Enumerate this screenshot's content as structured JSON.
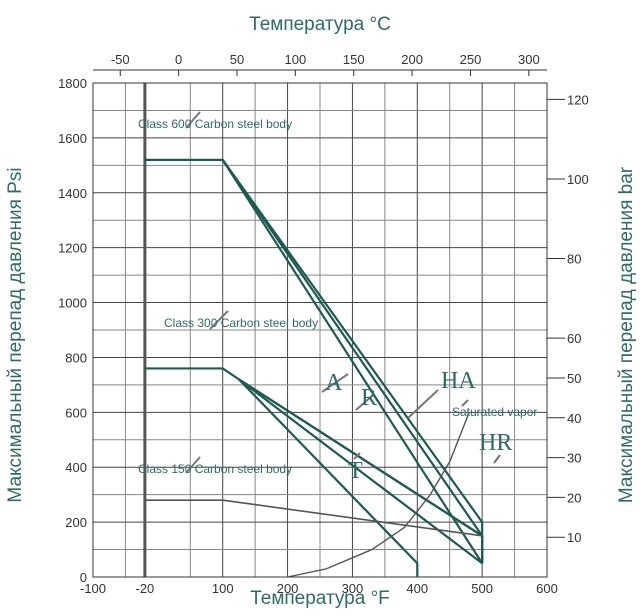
{
  "chart_data": {
    "type": "line",
    "title": "",
    "xlabel_bottom": "Температура °F",
    "xlabel_top": "Температура °C",
    "ylabel_left": "Максимальный перепад давления Psi",
    "ylabel_right": "Максимальный перепад давления bar",
    "xlim": [
      -100,
      600
    ],
    "ylim": [
      0,
      1800
    ],
    "x_ticks_bottom": [
      "-100",
      "-20",
      "100",
      "200",
      "300",
      "400",
      "500",
      "600"
    ],
    "x_ticks_top": [
      "-50",
      "0",
      "50",
      "100",
      "150",
      "200",
      "250",
      "300"
    ],
    "y_ticks_left": [
      "0",
      "200",
      "400",
      "600",
      "800",
      "1000",
      "1200",
      "1400",
      "1600",
      "1800"
    ],
    "y_ticks_right": [
      "10",
      "20",
      "30",
      "40",
      "50",
      "60",
      "80",
      "100",
      "120"
    ],
    "grid": true,
    "annotations": {
      "class600": "Class 600 Carbon steel body",
      "class300": "Class 300 Carbon steel body",
      "class150": "Class 150 Carbon steel body",
      "saturated": "Saturated vapor",
      "HA": "HA",
      "A": "A",
      "R": "R",
      "T": "T",
      "HR": "HR"
    },
    "series": [
      {
        "x": [
          -20,
          100,
          500,
          500
        ],
        "y": [
          1520,
          1520,
          150,
          50
        ]
      },
      {
        "x": [
          100,
          500,
          500
        ],
        "y": [
          1520,
          200,
          50
        ]
      },
      {
        "x": [
          100,
          500
        ],
        "y": [
          1520,
          50
        ]
      },
      {
        "x": [
          -20,
          100,
          125,
          500,
          500
        ],
        "y": [
          760,
          760,
          720,
          150,
          50
        ]
      },
      {
        "x": [
          125,
          500
        ],
        "y": [
          720,
          150
        ]
      },
      {
        "x": [
          125,
          500
        ],
        "y": [
          720,
          50
        ]
      },
      {
        "x": [
          125,
          400,
          400
        ],
        "y": [
          720,
          50,
          0
        ]
      },
      {
        "x": [
          -20,
          100,
          500
        ],
        "y": [
          280,
          280,
          150
        ]
      },
      {
        "x": [
          200,
          260,
          330,
          380,
          420,
          450,
          480
        ],
        "y": [
          0,
          30,
          100,
          180,
          300,
          420,
          600
        ]
      }
    ]
  }
}
